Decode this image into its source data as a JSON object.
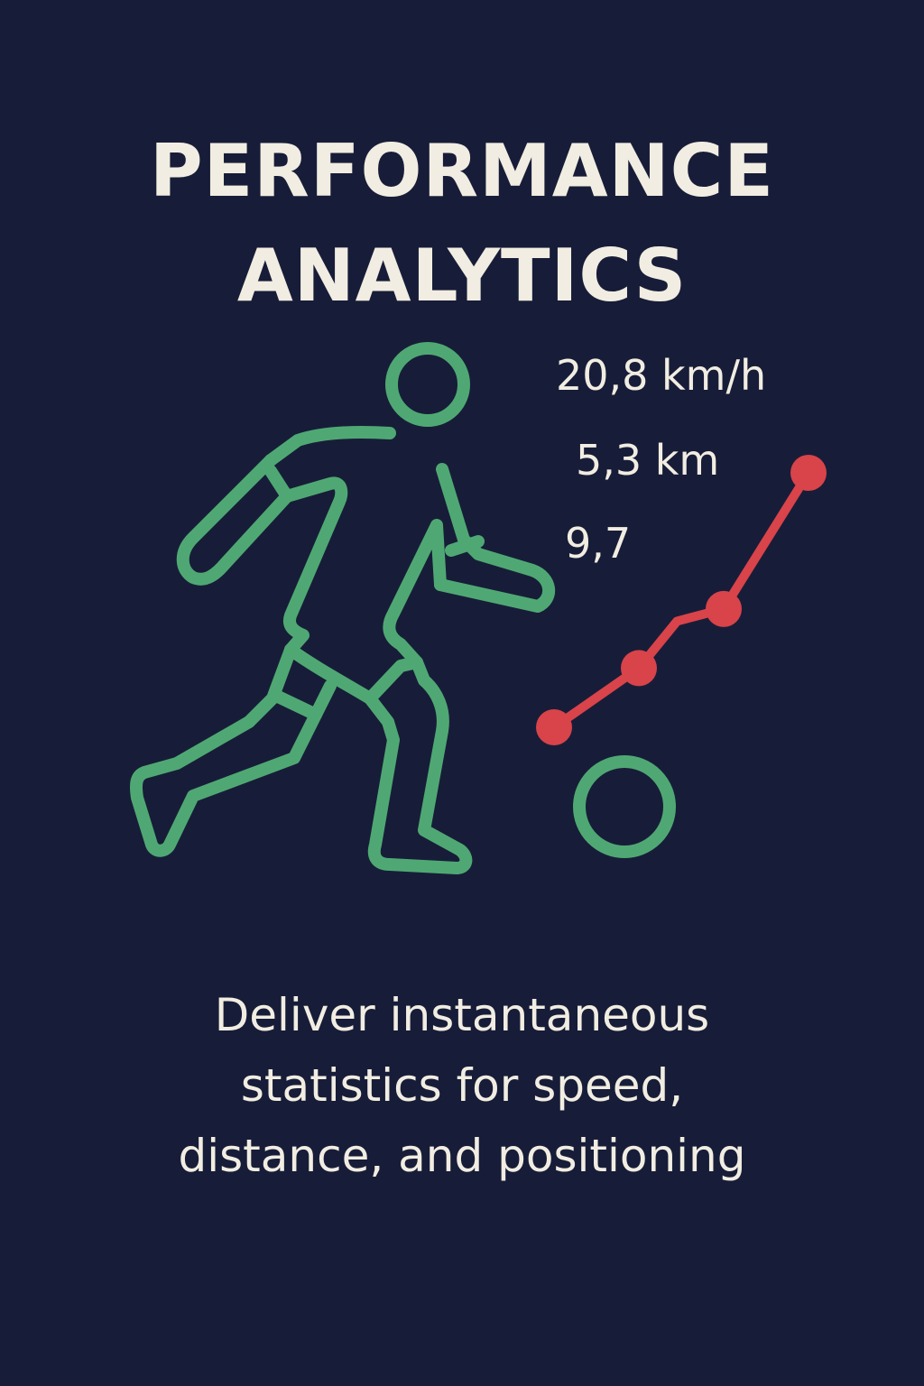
{
  "title": {
    "line1": "PERFORMANCE",
    "line2": "ANALYTICS"
  },
  "stats": {
    "speed": "20,8 km/h",
    "distance": "5,3 km",
    "rating": "9,7"
  },
  "trend_chart": {
    "type": "line",
    "values": [
      1.0,
      2.0,
      3.0,
      5.3
    ]
  },
  "subtitle": {
    "line1": "Deliver instantaneous",
    "line2": "statistics for speed,",
    "line3": "distance, and positioning"
  },
  "icons": {
    "player": "running-player-icon",
    "ball": "ball-icon"
  },
  "colors": {
    "background": "#171d38",
    "text": "#f2ede2",
    "player": "#4fa873",
    "trend": "#d9434a"
  }
}
